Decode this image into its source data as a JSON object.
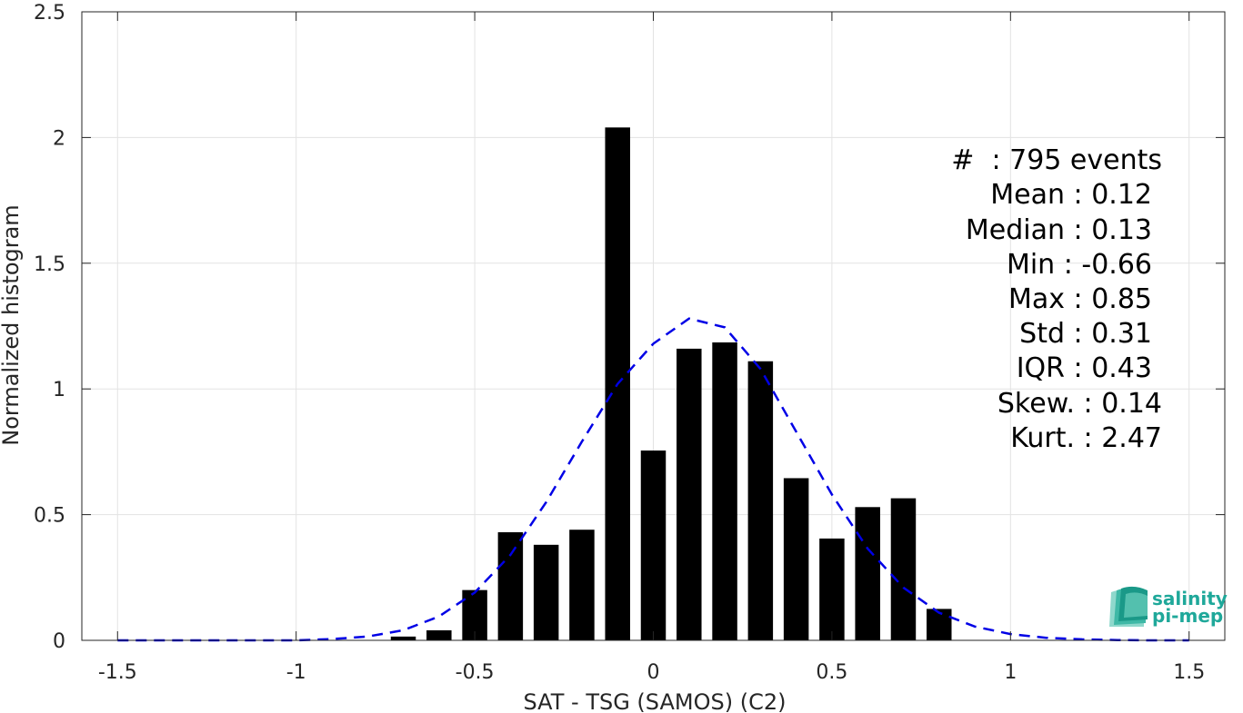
{
  "chart_data": {
    "type": "bar",
    "xlabel": "SAT - TSG (SAMOS) (C2)",
    "ylabel": "Normalized histogram",
    "xlim": [
      -1.6,
      1.6
    ],
    "ylim": [
      0,
      2.5
    ],
    "xticks": [
      -1.5,
      -1,
      -0.5,
      0,
      0.5,
      1,
      1.5
    ],
    "xtick_labels": [
      "-1.5",
      "-1",
      "-0.5",
      "0",
      "0.5",
      "1",
      "1.5"
    ],
    "yticks": [
      0,
      0.5,
      1,
      1.5,
      2,
      2.5
    ],
    "ytick_labels": [
      "0",
      "0.5",
      "1",
      "1.5",
      "2",
      "2.5"
    ],
    "grid": true,
    "bar_width": 0.07,
    "bars": {
      "x": [
        -0.7,
        -0.6,
        -0.5,
        -0.4,
        -0.3,
        -0.2,
        -0.1,
        0.0,
        0.1,
        0.2,
        0.3,
        0.4,
        0.5,
        0.6,
        0.7,
        0.8
      ],
      "values": [
        0.015,
        0.04,
        0.2,
        0.43,
        0.38,
        0.44,
        2.04,
        0.755,
        1.16,
        1.185,
        1.11,
        0.645,
        0.405,
        0.53,
        0.565,
        0.125
      ],
      "color": "#000000"
    },
    "fit_curve": {
      "style": "dashed",
      "color": "#0000e6",
      "x": [
        -1.5,
        -1.4,
        -1.3,
        -1.2,
        -1.1,
        -1.0,
        -0.9,
        -0.8,
        -0.7,
        -0.6,
        -0.5,
        -0.4,
        -0.3,
        -0.2,
        -0.1,
        0.0,
        0.1,
        0.2,
        0.3,
        0.4,
        0.5,
        0.6,
        0.7,
        0.8,
        0.9,
        1.0,
        1.1,
        1.2,
        1.3,
        1.4,
        1.5
      ],
      "y": [
        0.0,
        0.0,
        0.0,
        0.0,
        0.0,
        0.0,
        0.005,
        0.015,
        0.04,
        0.095,
        0.19,
        0.34,
        0.55,
        0.79,
        1.02,
        1.18,
        1.28,
        1.245,
        1.08,
        0.83,
        0.58,
        0.365,
        0.21,
        0.11,
        0.055,
        0.025,
        0.01,
        0.004,
        0.001,
        0.0,
        0.0
      ]
    }
  },
  "stats": {
    "events": "#  : 795 events",
    "mean": "Mean : 0.12",
    "median": "Median : 0.13",
    "min": "Min : -0.66",
    "max": "Max : 0.85",
    "std": "Std : 0.31",
    "iqr": "IQR : 0.43",
    "skew": "Skew. : 0.14",
    "kurt": "Kurt. : 2.47"
  },
  "logo": {
    "line1": "salinity",
    "line2": "pi-mep"
  }
}
